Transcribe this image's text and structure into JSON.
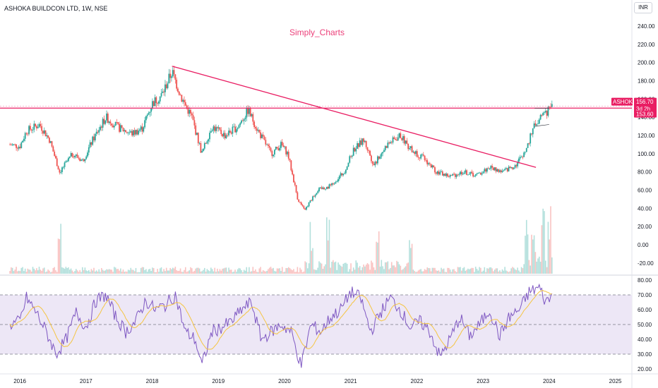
{
  "header": {
    "title": "ASHOKA BUILDCON LTD, 1W, NSE",
    "currency": "INR",
    "watermark": "Simply_Charts"
  },
  "colors": {
    "up": "#26a69a",
    "down": "#ef5350",
    "trendline": "#e91e63",
    "horizontal_line": "#e91e63",
    "rsi": "#7e57c2",
    "rsi_ma": "#f5c542",
    "rsi_band": "#ede7f6",
    "price_badge": "#e91e63"
  },
  "chart_data": [
    {
      "type": "candlestick",
      "title": "ASHOKA BUILDCON LTD, 1W, NSE",
      "x_range": [
        "2015-10",
        "2025-04"
      ],
      "x_ticks": [
        "2016",
        "2017",
        "2018",
        "2019",
        "2020",
        "2021",
        "2022",
        "2023",
        "2024",
        "2025"
      ],
      "y_ticks": [
        "240.00",
        "220.00",
        "200.00",
        "180.00",
        "160.00",
        "140.00",
        "120.00",
        "100.00",
        "80.00",
        "60.00",
        "40.00",
        "20.00",
        "0.00",
        "-20.00"
      ],
      "ylim": [
        -25,
        250
      ],
      "price_path": [
        {
          "t": 2015.85,
          "v": 110
        },
        {
          "t": 2016.0,
          "v": 108
        },
        {
          "t": 2016.1,
          "v": 125
        },
        {
          "t": 2016.3,
          "v": 132
        },
        {
          "t": 2016.45,
          "v": 115
        },
        {
          "t": 2016.6,
          "v": 80
        },
        {
          "t": 2016.8,
          "v": 100
        },
        {
          "t": 2016.95,
          "v": 92
        },
        {
          "t": 2017.1,
          "v": 115
        },
        {
          "t": 2017.3,
          "v": 140
        },
        {
          "t": 2017.5,
          "v": 128
        },
        {
          "t": 2017.7,
          "v": 122
        },
        {
          "t": 2017.85,
          "v": 128
        },
        {
          "t": 2018.0,
          "v": 155
        },
        {
          "t": 2018.15,
          "v": 165
        },
        {
          "t": 2018.3,
          "v": 190
        },
        {
          "t": 2018.45,
          "v": 160
        },
        {
          "t": 2018.6,
          "v": 140
        },
        {
          "t": 2018.75,
          "v": 100
        },
        {
          "t": 2018.9,
          "v": 130
        },
        {
          "t": 2019.1,
          "v": 120
        },
        {
          "t": 2019.3,
          "v": 130
        },
        {
          "t": 2019.45,
          "v": 148
        },
        {
          "t": 2019.6,
          "v": 125
        },
        {
          "t": 2019.8,
          "v": 100
        },
        {
          "t": 2019.95,
          "v": 110
        },
        {
          "t": 2020.05,
          "v": 100
        },
        {
          "t": 2020.2,
          "v": 50
        },
        {
          "t": 2020.3,
          "v": 38
        },
        {
          "t": 2020.5,
          "v": 60
        },
        {
          "t": 2020.7,
          "v": 65
        },
        {
          "t": 2020.9,
          "v": 80
        },
        {
          "t": 2021.05,
          "v": 105
        },
        {
          "t": 2021.2,
          "v": 115
        },
        {
          "t": 2021.35,
          "v": 88
        },
        {
          "t": 2021.55,
          "v": 110
        },
        {
          "t": 2021.75,
          "v": 120
        },
        {
          "t": 2021.9,
          "v": 105
        },
        {
          "t": 2022.1,
          "v": 95
        },
        {
          "t": 2022.3,
          "v": 80
        },
        {
          "t": 2022.5,
          "v": 75
        },
        {
          "t": 2022.7,
          "v": 80
        },
        {
          "t": 2022.9,
          "v": 76
        },
        {
          "t": 2023.1,
          "v": 85
        },
        {
          "t": 2023.3,
          "v": 80
        },
        {
          "t": 2023.5,
          "v": 88
        },
        {
          "t": 2023.65,
          "v": 105
        },
        {
          "t": 2023.8,
          "v": 135
        },
        {
          "t": 2023.95,
          "v": 145
        },
        {
          "t": 2024.05,
          "v": 156.7
        }
      ],
      "trendline": [
        {
          "t": 2018.3,
          "v": 196
        },
        {
          "t": 2023.8,
          "v": 85
        }
      ],
      "horizontal_line": 150,
      "consolidation_box": {
        "t0": 2023.78,
        "t1": 2024.0,
        "top": 150,
        "bottom": 130
      },
      "last_price_label": "ASHOKA",
      "last_price": "156.70",
      "countdown": "3d 2h",
      "secondary_price": "153.60",
      "volume_spike_dates": [
        2016.6,
        2020.4,
        2020.65,
        2021.4,
        2021.9,
        2023.65,
        2023.75,
        2023.9,
        2024.0
      ]
    },
    {
      "type": "line",
      "title": "",
      "y_ticks": [
        "80.00",
        "70.00",
        "60.00",
        "50.00",
        "40.00",
        "30.00",
        "20.00"
      ],
      "ylim": [
        20,
        80
      ],
      "bands": [
        70,
        50,
        30
      ],
      "rsi_path": [
        {
          "t": 2015.85,
          "v": 50
        },
        {
          "t": 2016.0,
          "v": 52
        },
        {
          "t": 2016.1,
          "v": 68
        },
        {
          "t": 2016.25,
          "v": 58
        },
        {
          "t": 2016.4,
          "v": 45
        },
        {
          "t": 2016.55,
          "v": 30
        },
        {
          "t": 2016.7,
          "v": 40
        },
        {
          "t": 2016.85,
          "v": 58
        },
        {
          "t": 2017.0,
          "v": 48
        },
        {
          "t": 2017.15,
          "v": 66
        },
        {
          "t": 2017.3,
          "v": 70
        },
        {
          "t": 2017.45,
          "v": 55
        },
        {
          "t": 2017.6,
          "v": 45
        },
        {
          "t": 2017.75,
          "v": 52
        },
        {
          "t": 2017.9,
          "v": 66
        },
        {
          "t": 2018.05,
          "v": 60
        },
        {
          "t": 2018.2,
          "v": 63
        },
        {
          "t": 2018.35,
          "v": 70
        },
        {
          "t": 2018.5,
          "v": 45
        },
        {
          "t": 2018.65,
          "v": 40
        },
        {
          "t": 2018.75,
          "v": 22
        },
        {
          "t": 2018.9,
          "v": 45
        },
        {
          "t": 2019.05,
          "v": 48
        },
        {
          "t": 2019.2,
          "v": 52
        },
        {
          "t": 2019.35,
          "v": 60
        },
        {
          "t": 2019.5,
          "v": 65
        },
        {
          "t": 2019.65,
          "v": 40
        },
        {
          "t": 2019.8,
          "v": 45
        },
        {
          "t": 2019.95,
          "v": 50
        },
        {
          "t": 2020.1,
          "v": 45
        },
        {
          "t": 2020.25,
          "v": 22
        },
        {
          "t": 2020.4,
          "v": 50
        },
        {
          "t": 2020.55,
          "v": 45
        },
        {
          "t": 2020.7,
          "v": 55
        },
        {
          "t": 2020.85,
          "v": 60
        },
        {
          "t": 2021.0,
          "v": 72
        },
        {
          "t": 2021.15,
          "v": 68
        },
        {
          "t": 2021.3,
          "v": 45
        },
        {
          "t": 2021.45,
          "v": 58
        },
        {
          "t": 2021.6,
          "v": 68
        },
        {
          "t": 2021.75,
          "v": 60
        },
        {
          "t": 2021.9,
          "v": 48
        },
        {
          "t": 2022.05,
          "v": 52
        },
        {
          "t": 2022.2,
          "v": 45
        },
        {
          "t": 2022.35,
          "v": 28
        },
        {
          "t": 2022.5,
          "v": 40
        },
        {
          "t": 2022.65,
          "v": 55
        },
        {
          "t": 2022.8,
          "v": 42
        },
        {
          "t": 2022.95,
          "v": 50
        },
        {
          "t": 2023.1,
          "v": 60
        },
        {
          "t": 2023.25,
          "v": 42
        },
        {
          "t": 2023.4,
          "v": 55
        },
        {
          "t": 2023.55,
          "v": 60
        },
        {
          "t": 2023.7,
          "v": 72
        },
        {
          "t": 2023.85,
          "v": 75
        },
        {
          "t": 2023.95,
          "v": 65
        },
        {
          "t": 2024.05,
          "v": 70
        }
      ]
    }
  ]
}
